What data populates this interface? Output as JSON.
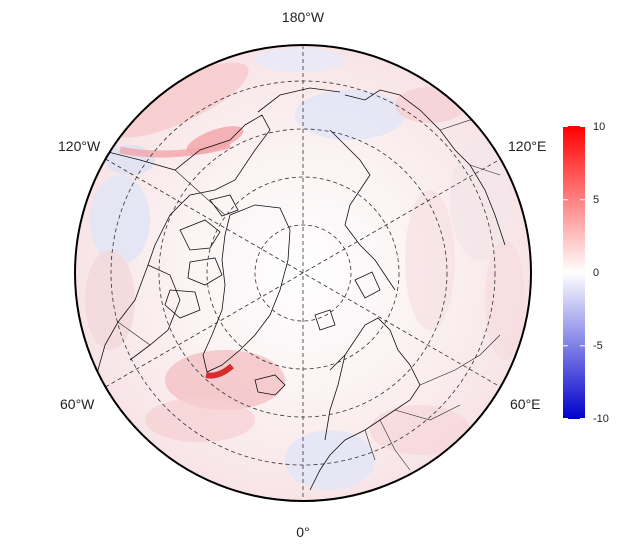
{
  "map": {
    "projection": "north-polar-stereographic",
    "lon_labels": {
      "top": "180°W",
      "bottom": "0°",
      "upper_left": "120°W",
      "upper_right": "120°E",
      "lower_left": "60°W",
      "lower_right": "60°E"
    },
    "graticule": {
      "meridian_spacing_deg": 60,
      "parallels": "dashed",
      "meridians": "dashed"
    },
    "features": [
      "coastlines",
      "country-borders",
      "polar-grid"
    ]
  },
  "colorbar": {
    "ticks": [
      "10",
      "5",
      "0",
      "-5",
      "-10"
    ],
    "vmin": -10,
    "vmax": 10,
    "colors": {
      "high": "#ff0000",
      "mid": "#ffffff",
      "low": "#0000cc"
    }
  }
}
